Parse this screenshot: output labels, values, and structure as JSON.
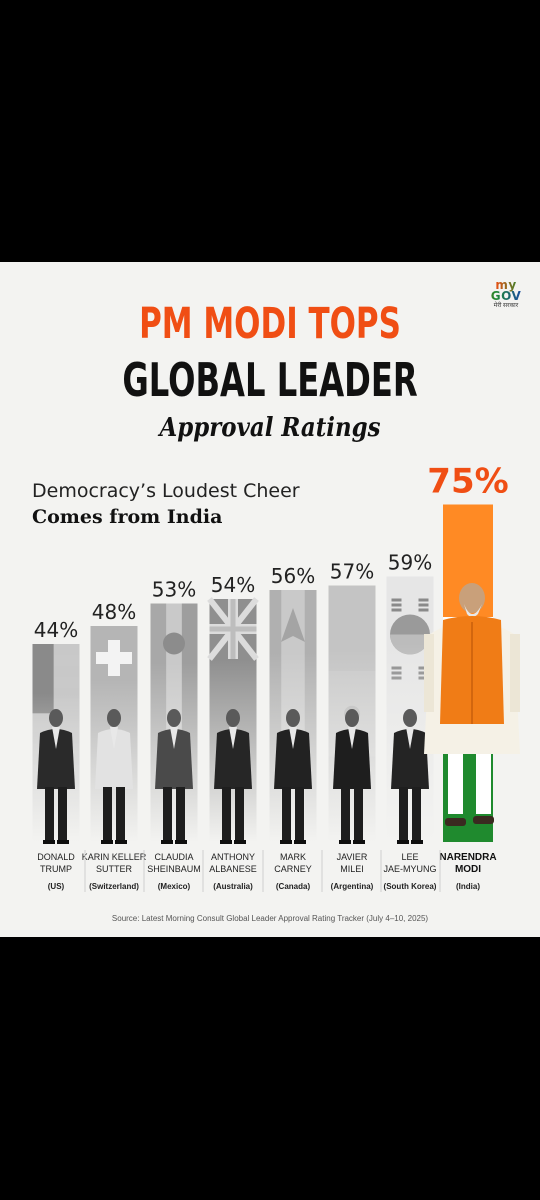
{
  "logo": {
    "line1": "my GOV",
    "line2": "मेरी सरकार"
  },
  "headline": {
    "line1": "PM MODI TOPS",
    "line2": "GLOBAL LEADER",
    "line3": "Approval Ratings"
  },
  "subheading": {
    "line1": "Democracy’s Loudest Cheer",
    "line2": "Comes from India"
  },
  "source": "Source: Latest Morning Consult Global Leader Approval Rating Tracker (July 4–10, 2025)",
  "colors": {
    "accent": "#f04e14",
    "saffron": "#ff8a24",
    "india_green": "#1f8a2e"
  },
  "chart_data": {
    "type": "bar",
    "categories": [
      {
        "name_line1": "DONALD",
        "name_line2": "TRUMP",
        "country": "(US)"
      },
      {
        "name_line1": "KARIN KELLER",
        "name_line2": "SUTTER",
        "country": "(Switzerland)"
      },
      {
        "name_line1": "CLAUDIA",
        "name_line2": "SHEINBAUM",
        "country": "(Mexico)"
      },
      {
        "name_line1": "ANTHONY",
        "name_line2": "ALBANESE",
        "country": "(Australia)"
      },
      {
        "name_line1": "MARK",
        "name_line2": "CARNEY",
        "country": "(Canada)"
      },
      {
        "name_line1": "JAVIER",
        "name_line2": "MILEI",
        "country": "(Argentina)"
      },
      {
        "name_line1": "LEE",
        "name_line2": "JAE-MYUNG",
        "country": "(South Korea)"
      },
      {
        "name_line1": "NARENDRA",
        "name_line2": "MODI",
        "country": "(India)"
      }
    ],
    "values": [
      44,
      48,
      53,
      54,
      56,
      57,
      59,
      75
    ],
    "value_labels": [
      "44%",
      "48%",
      "53%",
      "54%",
      "56%",
      "57%",
      "59%",
      "75%"
    ],
    "flags": [
      "us-flag",
      "switzerland-flag",
      "mexico-flag",
      "australia-flag",
      "canada-flag",
      "argentina-flag",
      "south-korea-flag",
      "india-flag"
    ],
    "highlight": "NARENDRA MODI",
    "title": "",
    "xlabel": "",
    "ylabel": "",
    "ylim": [
      0,
      80
    ],
    "grid": false
  }
}
